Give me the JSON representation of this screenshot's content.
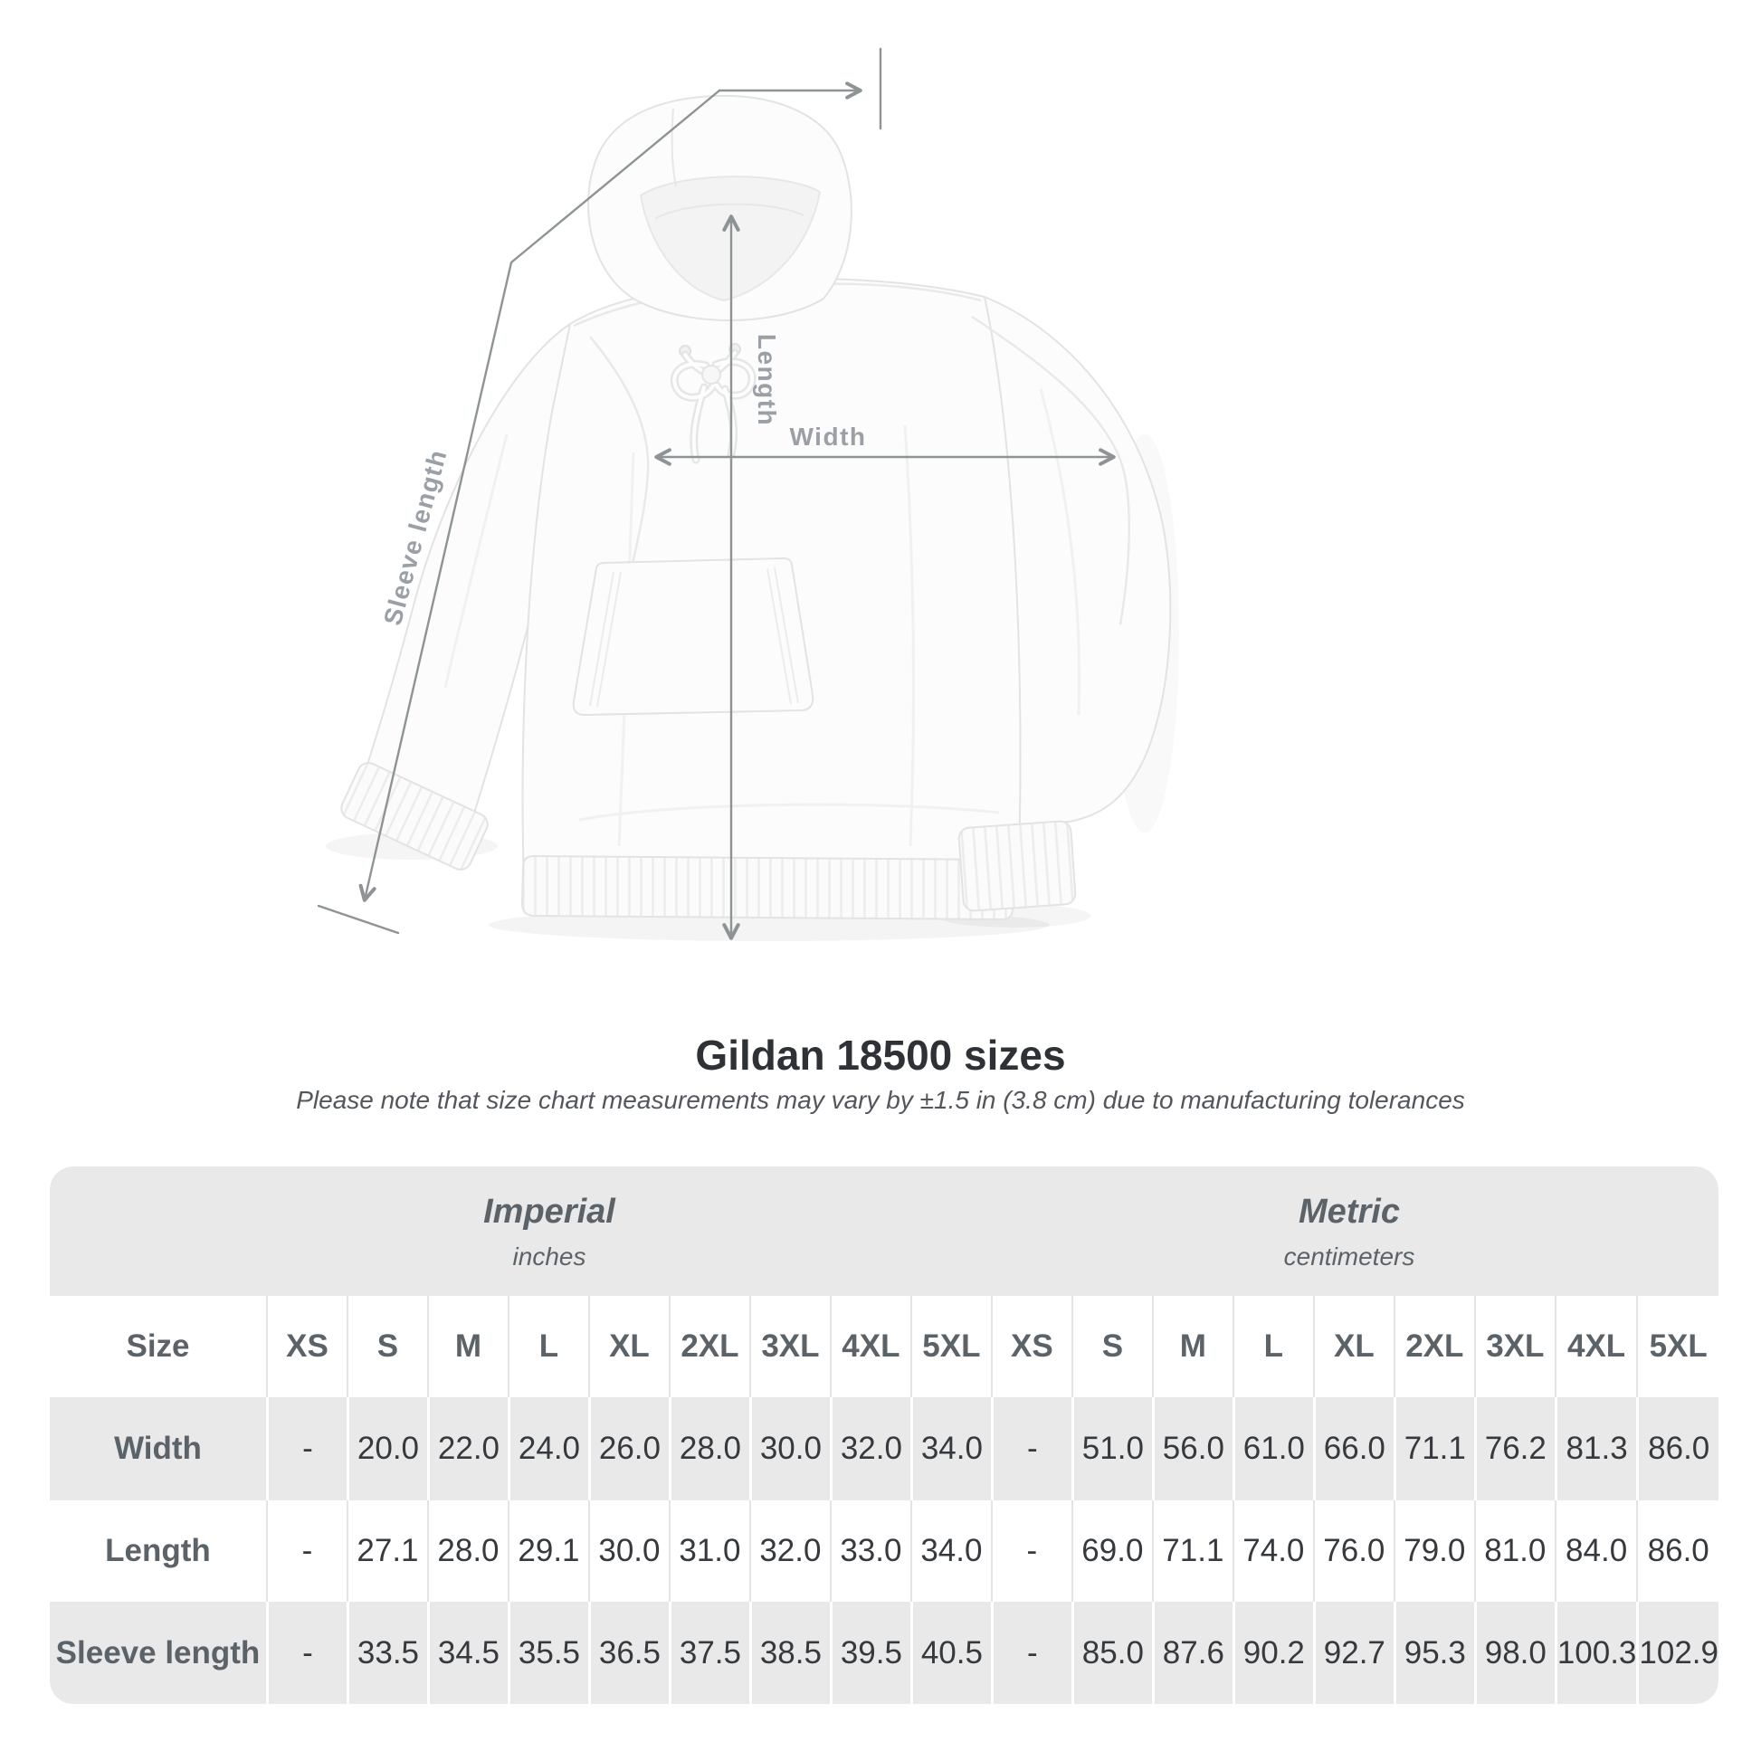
{
  "diagram": {
    "sleeve_length_label": "Sleeve length",
    "length_label": "Length",
    "width_label": "Width"
  },
  "heading": {
    "title": "Gildan 18500 sizes",
    "subtitle": "Please note that size chart measurements may vary by ±1.5 in (3.8 cm) due to manufacturing tolerances"
  },
  "size_table": {
    "unit_groups": [
      {
        "name": "Imperial",
        "unit": "inches"
      },
      {
        "name": "Metric",
        "unit": "centimeters"
      }
    ],
    "corner_header": "Size",
    "sizes": [
      "XS",
      "S",
      "M",
      "L",
      "XL",
      "2XL",
      "3XL",
      "4XL",
      "5XL"
    ],
    "rows": [
      {
        "label": "Width",
        "imperial": [
          "-",
          "20.0",
          "22.0",
          "24.0",
          "26.0",
          "28.0",
          "30.0",
          "32.0",
          "34.0"
        ],
        "metric": [
          "-",
          "51.0",
          "56.0",
          "61.0",
          "66.0",
          "71.1",
          "76.2",
          "81.3",
          "86.0"
        ]
      },
      {
        "label": "Length",
        "imperial": [
          "-",
          "27.1",
          "28.0",
          "29.1",
          "30.0",
          "31.0",
          "32.0",
          "33.0",
          "34.0"
        ],
        "metric": [
          "-",
          "69.0",
          "71.1",
          "74.0",
          "76.0",
          "79.0",
          "81.0",
          "84.0",
          "86.0"
        ]
      },
      {
        "label": "Sleeve length",
        "imperial": [
          "-",
          "33.5",
          "34.5",
          "35.5",
          "36.5",
          "37.5",
          "38.5",
          "39.5",
          "40.5"
        ],
        "metric": [
          "-",
          "85.0",
          "87.6",
          "90.2",
          "92.7",
          "95.3",
          "98.0",
          "100.3",
          "102.9"
        ]
      }
    ]
  },
  "colors": {
    "stripe_gray": "#e9e9e9",
    "measure_line": "#8e9396",
    "measure_label": "#9aa0a6",
    "header_text": "#5b6369",
    "value_text": "#36393d",
    "title_text": "#2e3236",
    "subtitle_text": "#53575c"
  }
}
